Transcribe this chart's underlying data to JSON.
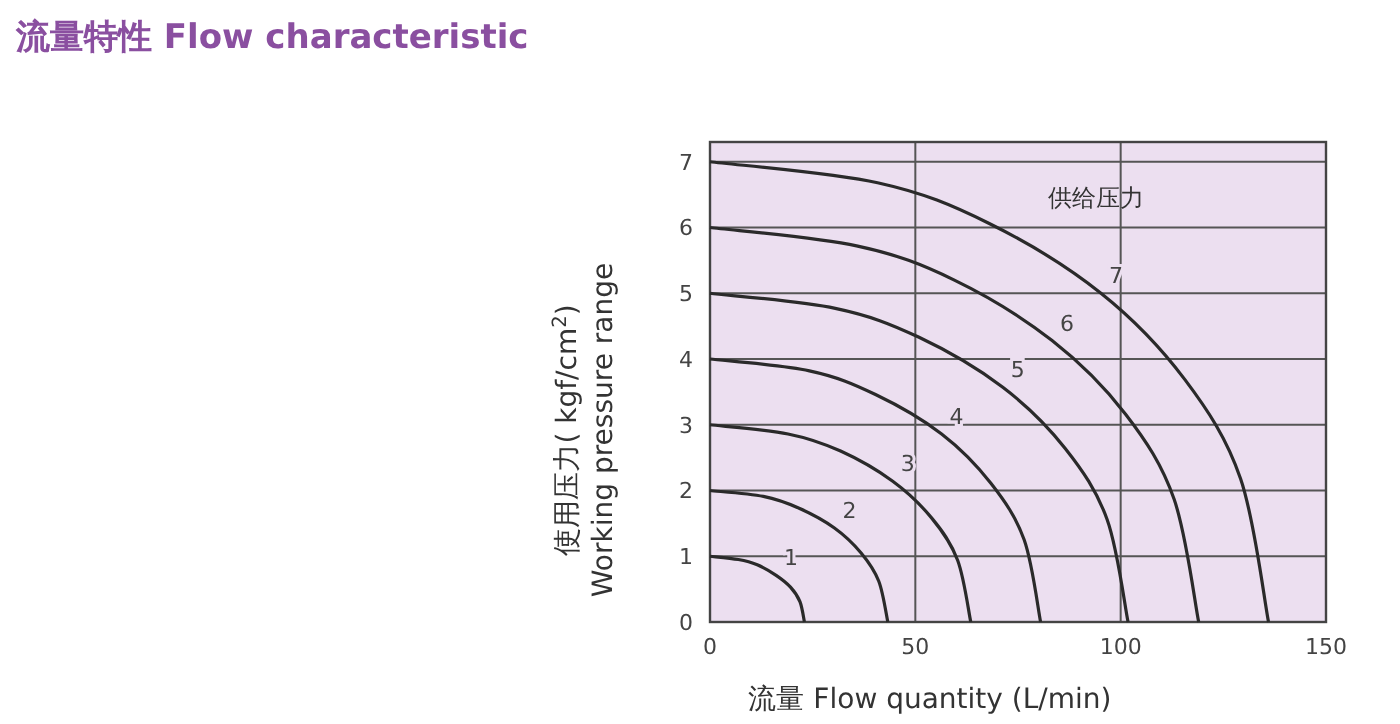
{
  "chart_data": {
    "type": "line",
    "title": "流量特性  Flow characteristic",
    "xlabel": "流量 Flow quantity (L/min)",
    "ylabel": "使用压力( kgf/cm$^{2}$)\nWorking pressure range",
    "annotations": [
      "供给压力"
    ],
    "xlim": [
      0,
      150
    ],
    "ylim": [
      0,
      7.3
    ],
    "xticks": [
      0,
      50,
      100,
      150
    ],
    "yticks": [
      0,
      1,
      2,
      3,
      4,
      5,
      6,
      7
    ],
    "grid": true,
    "legend": false,
    "marker": "none",
    "line_style": "solid",
    "series": [
      {
        "name": "1",
        "color": "#2a2a2a",
        "x": [
          0,
          6.9,
          11.5,
          16.1,
          19.6,
          21.9,
          23
        ],
        "values": [
          1,
          0.95,
          0.87,
          0.71,
          0.53,
          0.31,
          0
        ]
      },
      {
        "name": "2",
        "color": "#2a2a2a",
        "x": [
          0,
          13,
          21.7,
          30.3,
          36.8,
          41.1,
          43.3
        ],
        "values": [
          2,
          1.91,
          1.73,
          1.43,
          1.05,
          0.62,
          0
        ]
      },
      {
        "name": "3",
        "color": "#2a2a2a",
        "x": [
          0,
          19,
          31.8,
          44.5,
          54,
          60.3,
          63.5
        ],
        "values": [
          3,
          2.86,
          2.6,
          2.14,
          1.58,
          0.94,
          0
        ]
      },
      {
        "name": "4",
        "color": "#2a2a2a",
        "x": [
          0,
          24.2,
          40.3,
          56.4,
          68.4,
          76.5,
          80.5
        ],
        "values": [
          4,
          3.82,
          3.46,
          2.86,
          2.11,
          1.25,
          0
        ]
      },
      {
        "name": "5",
        "color": "#2a2a2a",
        "x": [
          0,
          30.5,
          50.9,
          71.3,
          86.5,
          96.7,
          101.8
        ],
        "values": [
          5,
          4.77,
          4.33,
          3.57,
          2.64,
          1.56,
          0
        ]
      },
      {
        "name": "6",
        "color": "#2a2a2a",
        "x": [
          0,
          35.7,
          59.5,
          83.3,
          101.2,
          113,
          119
        ],
        "values": [
          6,
          5.72,
          5.2,
          4.28,
          3.16,
          1.87,
          0
        ]
      },
      {
        "name": "7",
        "color": "#2a2a2a",
        "x": [
          0,
          40.8,
          68,
          95.2,
          115.6,
          129.2,
          136
        ],
        "values": [
          7,
          6.68,
          6.06,
          5,
          3.69,
          2.18,
          0
        ]
      }
    ]
  }
}
